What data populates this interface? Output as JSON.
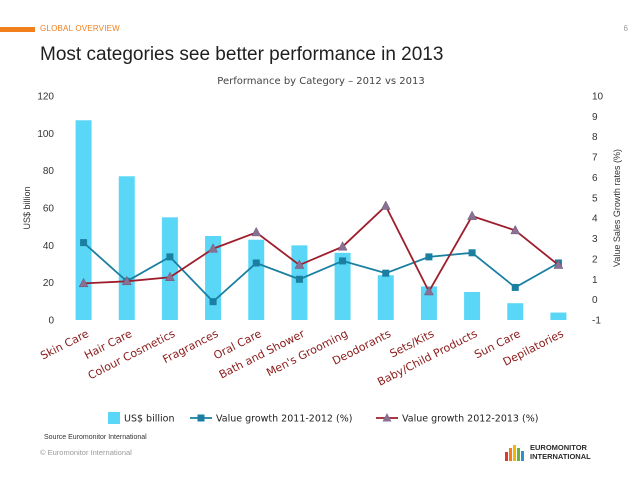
{
  "header": {
    "section": "GLOBAL OVERVIEW",
    "page_number": "6"
  },
  "slide_title": "Most categories see better performance in 2013",
  "footer": {
    "source": "Source Euromonitor International",
    "copyright": "© Euromonitor International",
    "logo_line1": "EUROMONITOR",
    "logo_line2": "INTERNATIONAL"
  },
  "colors": {
    "accent": "#f07f1c",
    "bar": "#5ad7f7",
    "line2012": "#1a7fa0",
    "line2013": "#9e1e2c",
    "marker2013": "#8a7194"
  },
  "chart_data": {
    "type": "bar",
    "title": "Performance by Category – 2012 vs 2013",
    "ylabel": "US$ billion",
    "y2label": "Value Sales Growth rates (%)",
    "ylim": [
      0,
      120
    ],
    "y2lim": [
      -1,
      10
    ],
    "yticks": [
      0,
      20,
      40,
      60,
      80,
      100,
      120
    ],
    "y2ticks": [
      -1,
      0,
      1,
      2,
      3,
      4,
      5,
      6,
      7,
      8,
      9,
      10
    ],
    "categories": [
      "Skin Care",
      "Hair Care",
      "Colour Cosmetics",
      "Fragrances",
      "Oral Care",
      "Bath and Shower",
      "Men's Grooming",
      "Deodorants",
      "Sets/Kits",
      "Baby/Child Products",
      "Sun Care",
      "Depilatories"
    ],
    "series": [
      {
        "name": "US$ billion",
        "type": "bar",
        "axis": "left",
        "values": [
          107,
          77,
          55,
          45,
          43,
          40,
          36,
          24,
          18,
          15,
          9,
          4
        ]
      },
      {
        "name": "Value growth 2011-2012 (%)",
        "type": "line",
        "axis": "right",
        "marker": "square",
        "values": [
          2.8,
          0.9,
          2.1,
          -0.1,
          1.8,
          1.0,
          1.9,
          1.3,
          2.1,
          2.3,
          0.6,
          1.8
        ]
      },
      {
        "name": "Value growth 2012-2013 (%)",
        "type": "line",
        "axis": "right",
        "marker": "triangle",
        "values": [
          0.8,
          0.9,
          1.1,
          2.5,
          3.3,
          1.7,
          2.6,
          4.6,
          0.4,
          4.1,
          3.4,
          1.7
        ]
      }
    ],
    "legend": "bottom"
  }
}
